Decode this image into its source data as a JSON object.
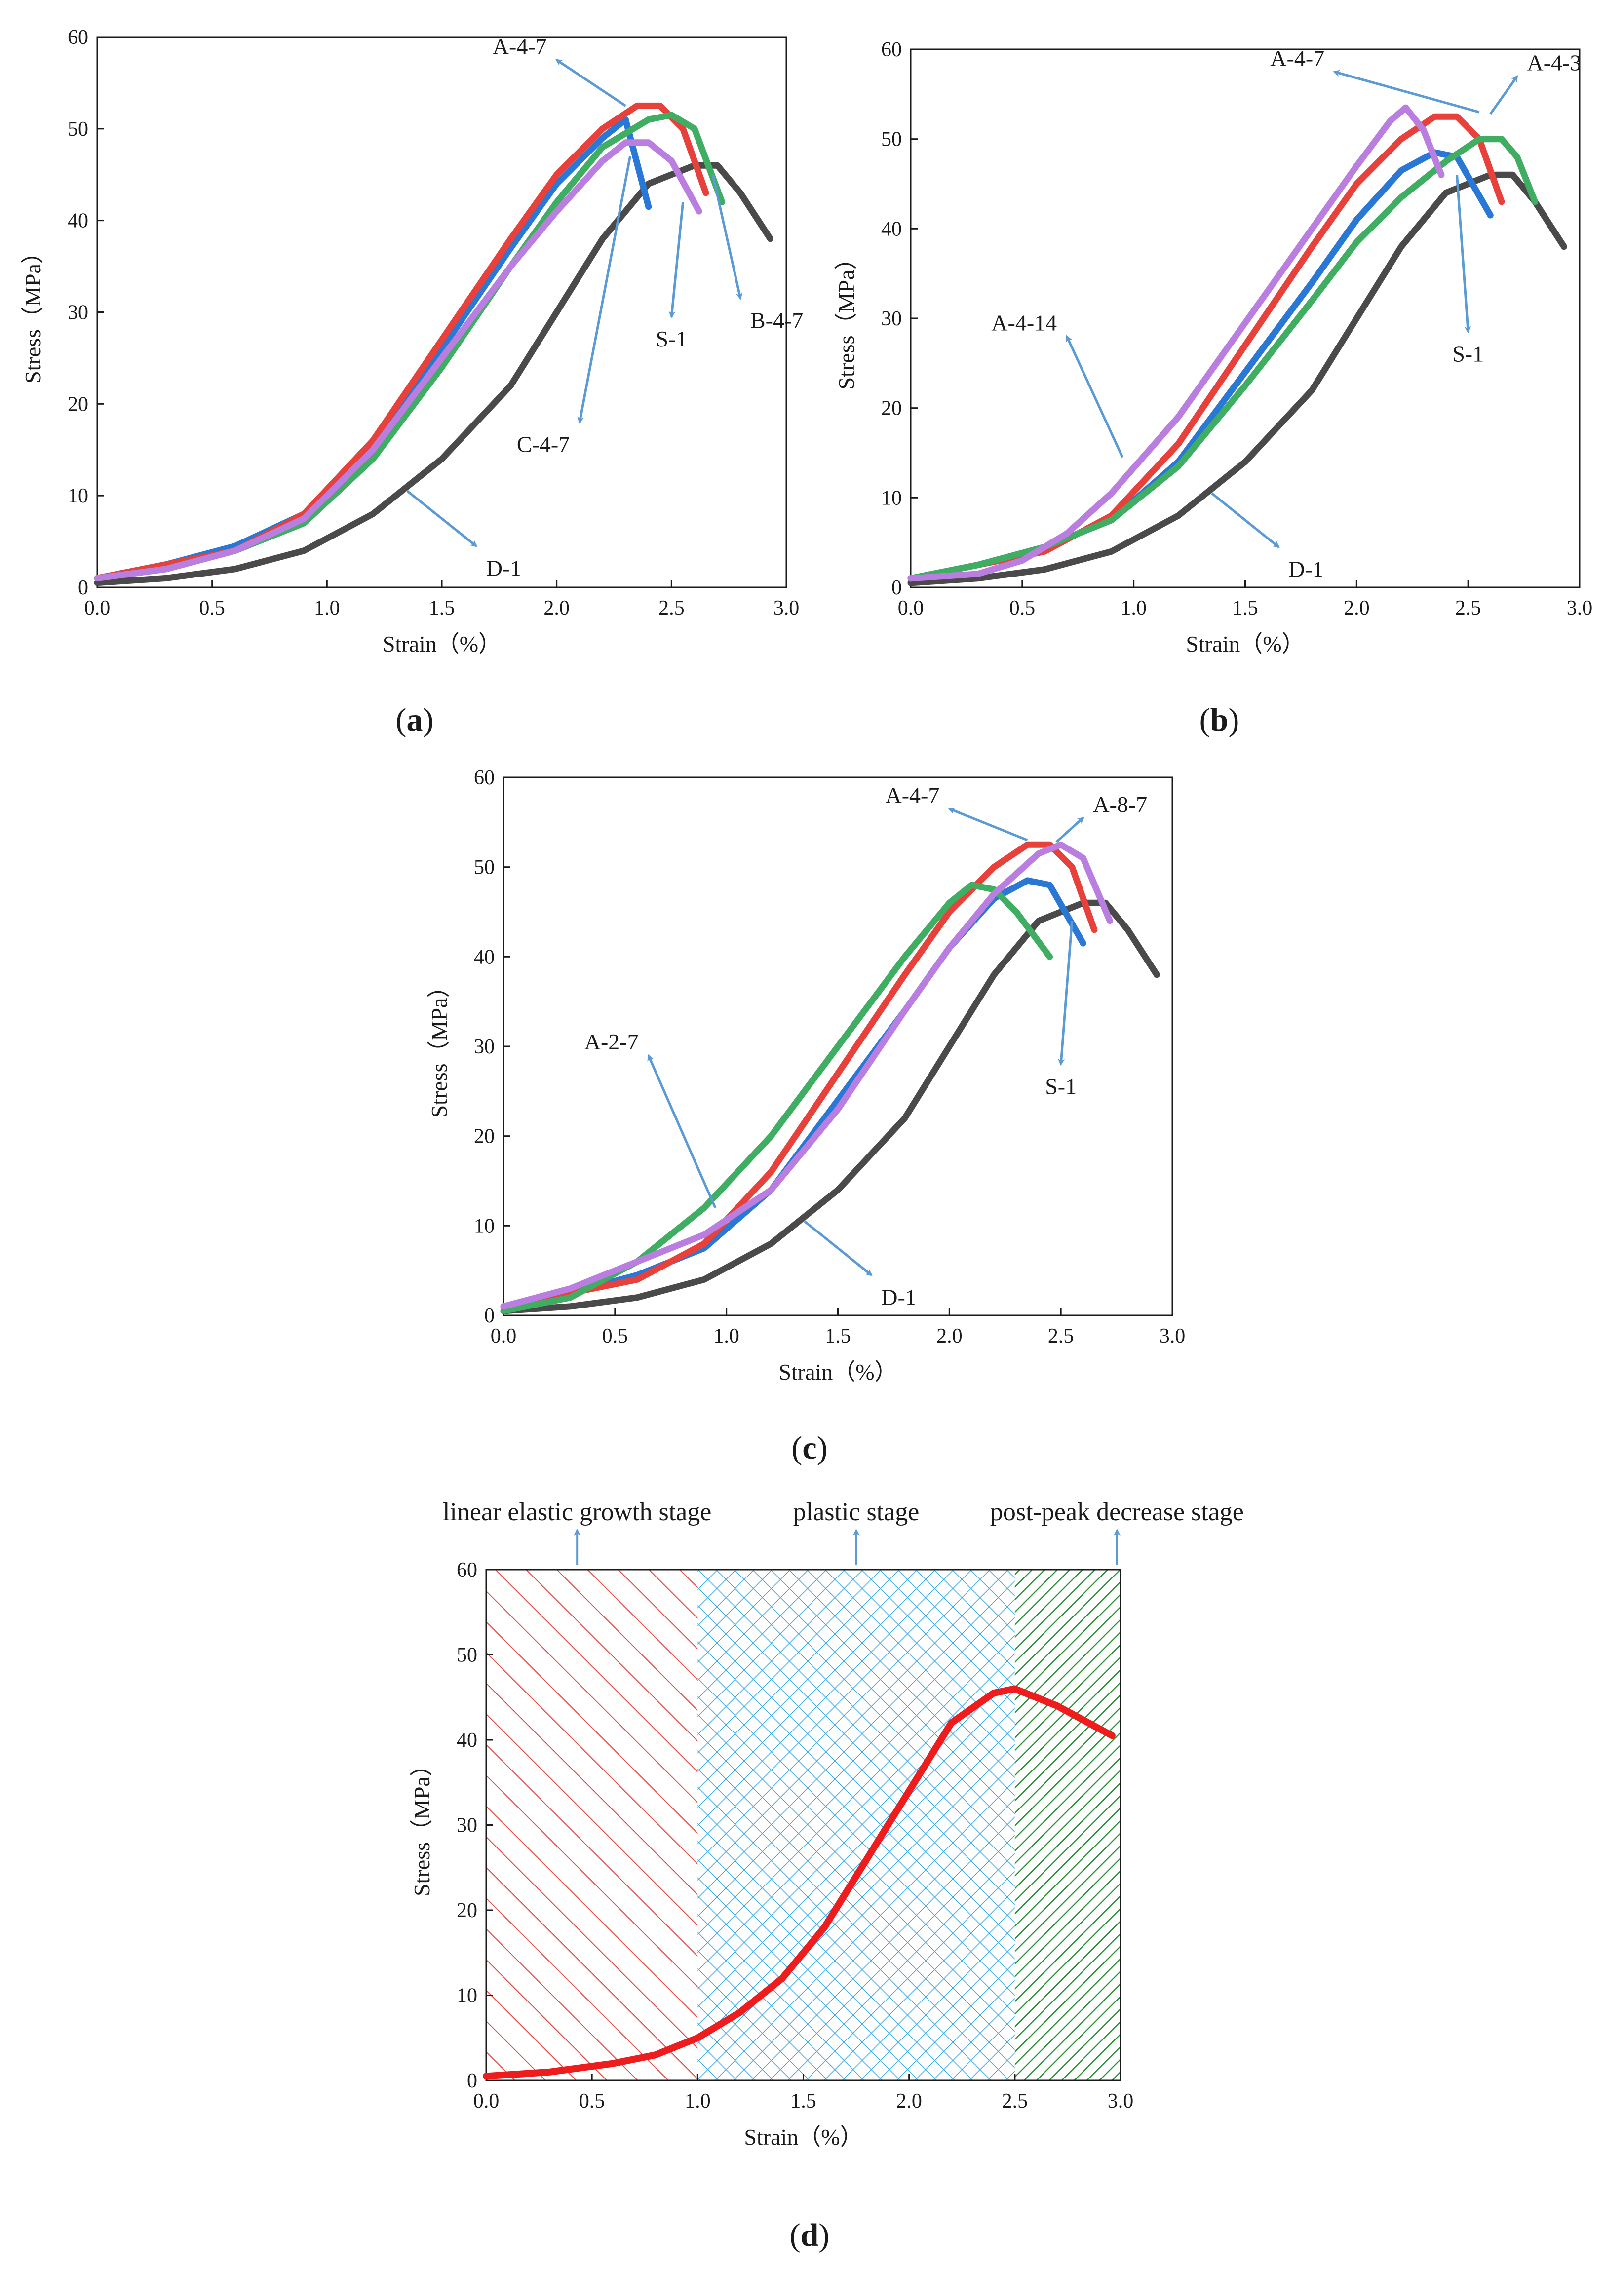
{
  "colors": {
    "D-1": "#4a4a4a",
    "S-1": "#2a78d6",
    "A-4-7": "#e8403a",
    "B-4-7": "#3fae63",
    "C-4-7": "#b97ee0",
    "A-4-3": "#3fae63",
    "A-4-14": "#b97ee0",
    "A-2-7": "#3fae63",
    "A-8-7": "#b97ee0",
    "arrow": "#5b9bd5"
  },
  "chart_data": [
    {
      "panel_label": "a",
      "type": "line",
      "xlabel": "Strain（%）",
      "ylabel": "Stress（MPa）",
      "xlim": [
        0,
        3.0
      ],
      "ylim": [
        0,
        60
      ],
      "xticks": [
        "0.0",
        "0.5",
        "1.0",
        "1.5",
        "2.0",
        "2.5",
        "3.0"
      ],
      "yticks": [
        "0",
        "10",
        "20",
        "30",
        "40",
        "50",
        "60"
      ],
      "series": [
        {
          "name": "D-1",
          "x": [
            0,
            0.3,
            0.6,
            0.9,
            1.2,
            1.5,
            1.8,
            2.0,
            2.2,
            2.4,
            2.6,
            2.7,
            2.8,
            2.93
          ],
          "y": [
            0.5,
            1.0,
            2.0,
            4.0,
            8.0,
            14.0,
            22.0,
            30.0,
            38.0,
            44.0,
            46.0,
            46.0,
            43.0,
            38.0
          ]
        },
        {
          "name": "S-1",
          "x": [
            0,
            0.3,
            0.6,
            0.9,
            1.2,
            1.5,
            1.8,
            2.0,
            2.2,
            2.3,
            2.4
          ],
          "y": [
            1.0,
            2.5,
            4.5,
            8.0,
            16.0,
            26.0,
            37.0,
            44.0,
            49.0,
            51.0,
            41.5
          ]
        },
        {
          "name": "A-4-7",
          "x": [
            0,
            0.2,
            0.6,
            0.9,
            1.2,
            1.5,
            1.8,
            2.0,
            2.2,
            2.35,
            2.45,
            2.55,
            2.65
          ],
          "y": [
            1.0,
            2.0,
            4.0,
            8.0,
            16.0,
            27.0,
            38.0,
            45.0,
            50.0,
            52.5,
            52.5,
            50.0,
            43.0
          ]
        },
        {
          "name": "B-4-7",
          "x": [
            0,
            0.3,
            0.6,
            0.9,
            1.2,
            1.5,
            1.8,
            2.0,
            2.2,
            2.4,
            2.5,
            2.6,
            2.72
          ],
          "y": [
            1.0,
            2.0,
            4.0,
            7.0,
            14.0,
            24.0,
            35.0,
            42.0,
            48.0,
            51.0,
            51.5,
            50.0,
            42.0
          ]
        },
        {
          "name": "C-4-7",
          "x": [
            0,
            0.3,
            0.6,
            0.9,
            1.2,
            1.5,
            1.8,
            2.0,
            2.2,
            2.3,
            2.4,
            2.5,
            2.62
          ],
          "y": [
            1.0,
            2.0,
            4.0,
            7.5,
            15.0,
            25.0,
            35.0,
            41.0,
            46.5,
            48.5,
            48.5,
            46.5,
            41.0
          ]
        }
      ],
      "annotations": [
        {
          "text": "A-4-7",
          "target": [
            2.3,
            52.5
          ],
          "label_at": [
            2.0,
            57.5
          ]
        },
        {
          "text": "B-4-7",
          "target": [
            2.68,
            45.0
          ],
          "label_at": [
            2.8,
            31.5
          ]
        },
        {
          "text": "S-1",
          "target": [
            2.55,
            42.0
          ],
          "label_at": [
            2.5,
            29.5
          ]
        },
        {
          "text": "C-4-7",
          "target": [
            2.32,
            47.0
          ],
          "label_at": [
            2.1,
            18.0
          ]
        },
        {
          "text": "D-1",
          "target": [
            1.35,
            10.5
          ],
          "label_at": [
            1.65,
            4.5
          ]
        }
      ]
    },
    {
      "panel_label": "b",
      "type": "line",
      "xlabel": "Strain（%）",
      "ylabel": "Stress（MPa）",
      "xlim": [
        0,
        3.0
      ],
      "ylim": [
        0,
        60
      ],
      "xticks": [
        "0.0",
        "0.5",
        "1.0",
        "1.5",
        "2.0",
        "2.5",
        "3.0"
      ],
      "yticks": [
        "0",
        "10",
        "20",
        "30",
        "40",
        "50",
        "60"
      ],
      "series": [
        {
          "name": "D-1",
          "x": [
            0,
            0.3,
            0.6,
            0.9,
            1.2,
            1.5,
            1.8,
            2.0,
            2.2,
            2.4,
            2.6,
            2.7,
            2.8,
            2.93
          ],
          "y": [
            0.5,
            1.0,
            2.0,
            4.0,
            8.0,
            14.0,
            22.0,
            30.0,
            38.0,
            44.0,
            46.0,
            46.0,
            43.0,
            38.0
          ]
        },
        {
          "name": "S-1",
          "x": [
            0,
            0.3,
            0.6,
            0.9,
            1.2,
            1.5,
            1.8,
            2.0,
            2.2,
            2.35,
            2.45,
            2.6
          ],
          "y": [
            1.0,
            2.5,
            4.5,
            7.5,
            14.0,
            24.0,
            34.0,
            41.0,
            46.5,
            48.5,
            48.0,
            41.5
          ]
        },
        {
          "name": "A-4-7",
          "x": [
            0,
            0.2,
            0.6,
            0.9,
            1.2,
            1.5,
            1.8,
            2.0,
            2.2,
            2.35,
            2.45,
            2.55,
            2.65
          ],
          "y": [
            1.0,
            2.0,
            4.0,
            8.0,
            16.0,
            27.0,
            38.0,
            45.0,
            50.0,
            52.5,
            52.5,
            50.0,
            43.0
          ]
        },
        {
          "name": "A-4-3",
          "x": [
            0,
            0.3,
            0.6,
            0.9,
            1.2,
            1.5,
            1.8,
            2.0,
            2.2,
            2.4,
            2.55,
            2.65,
            2.72,
            2.8
          ],
          "y": [
            1.0,
            2.5,
            4.5,
            7.5,
            13.5,
            22.5,
            32.0,
            38.5,
            43.5,
            47.5,
            50.0,
            50.0,
            48.0,
            43.0
          ]
        },
        {
          "name": "A-4-14",
          "x": [
            0,
            0.3,
            0.5,
            0.7,
            0.9,
            1.2,
            1.5,
            1.8,
            2.0,
            2.15,
            2.22,
            2.3,
            2.38
          ],
          "y": [
            1.0,
            1.5,
            3.0,
            6.0,
            10.5,
            19.0,
            29.5,
            40.0,
            47.0,
            52.0,
            53.5,
            51.0,
            46.0
          ]
        }
      ],
      "annotations": [
        {
          "text": "A-4-7",
          "target": [
            2.55,
            53.0
          ],
          "label_at": [
            1.9,
            57.5
          ]
        },
        {
          "text": "A-4-3",
          "target": [
            2.6,
            52.8
          ],
          "label_at": [
            2.72,
            57.0
          ]
        },
        {
          "text": "A-4-14",
          "target": [
            0.95,
            14.5
          ],
          "label_at": [
            0.7,
            28.0
          ]
        },
        {
          "text": "S-1",
          "target": [
            2.45,
            46.0
          ],
          "label_at": [
            2.5,
            28.5
          ]
        },
        {
          "text": "D-1",
          "target": [
            1.35,
            10.5
          ],
          "label_at": [
            1.65,
            4.5
          ]
        }
      ]
    },
    {
      "panel_label": "c",
      "type": "line",
      "xlabel": "Strain（%）",
      "ylabel": "Stress（MPa）",
      "xlim": [
        0,
        3.0
      ],
      "ylim": [
        0,
        60
      ],
      "xticks": [
        "0.0",
        "0.5",
        "1.0",
        "1.5",
        "2.0",
        "2.5",
        "3.0"
      ],
      "yticks": [
        "0",
        "10",
        "20",
        "30",
        "40",
        "50",
        "60"
      ],
      "series": [
        {
          "name": "D-1",
          "x": [
            0,
            0.3,
            0.6,
            0.9,
            1.2,
            1.5,
            1.8,
            2.0,
            2.2,
            2.4,
            2.6,
            2.7,
            2.8,
            2.93
          ],
          "y": [
            0.5,
            1.0,
            2.0,
            4.0,
            8.0,
            14.0,
            22.0,
            30.0,
            38.0,
            44.0,
            46.0,
            46.0,
            43.0,
            38.0
          ]
        },
        {
          "name": "S-1",
          "x": [
            0,
            0.3,
            0.6,
            0.9,
            1.2,
            1.5,
            1.8,
            2.0,
            2.2,
            2.35,
            2.45,
            2.6
          ],
          "y": [
            1.0,
            2.5,
            4.5,
            7.5,
            14.0,
            24.0,
            34.0,
            41.0,
            46.5,
            48.5,
            48.0,
            41.5
          ]
        },
        {
          "name": "A-4-7",
          "x": [
            0,
            0.2,
            0.6,
            0.9,
            1.2,
            1.5,
            1.8,
            2.0,
            2.2,
            2.35,
            2.45,
            2.55,
            2.65
          ],
          "y": [
            1.0,
            2.0,
            4.0,
            8.0,
            16.0,
            27.0,
            38.0,
            45.0,
            50.0,
            52.5,
            52.5,
            50.0,
            43.0
          ]
        },
        {
          "name": "A-2-7",
          "x": [
            0,
            0.3,
            0.6,
            0.9,
            1.2,
            1.5,
            1.8,
            2.0,
            2.1,
            2.2,
            2.3,
            2.45
          ],
          "y": [
            0.5,
            2.0,
            6.0,
            12.0,
            20.0,
            30.0,
            40.0,
            46.0,
            48.0,
            47.5,
            45.0,
            40.0
          ]
        },
        {
          "name": "A-8-7",
          "x": [
            0,
            0.3,
            0.6,
            0.9,
            1.2,
            1.5,
            1.8,
            2.0,
            2.2,
            2.4,
            2.5,
            2.6,
            2.72
          ],
          "y": [
            1.0,
            3.0,
            6.0,
            9.0,
            14.0,
            23.0,
            34.0,
            41.0,
            47.0,
            51.5,
            52.5,
            51.0,
            44.0
          ]
        }
      ],
      "annotations": [
        {
          "text": "A-4-7",
          "target": [
            2.35,
            53.0
          ],
          "label_at": [
            2.0,
            56.5
          ]
        },
        {
          "text": "A-8-7",
          "target": [
            2.48,
            52.8
          ],
          "label_at": [
            2.6,
            55.5
          ]
        },
        {
          "text": "A-2-7",
          "target": [
            0.95,
            12.0
          ],
          "label_at": [
            0.65,
            29.0
          ]
        },
        {
          "text": "S-1",
          "target": [
            2.55,
            44.0
          ],
          "label_at": [
            2.5,
            28.0
          ]
        },
        {
          "text": "D-1",
          "target": [
            1.35,
            10.5
          ],
          "label_at": [
            1.65,
            4.5
          ]
        }
      ]
    },
    {
      "panel_label": "d",
      "type": "line",
      "xlabel": "Strain（%）",
      "ylabel": "Stress（MPa）",
      "xlim": [
        0,
        3.0
      ],
      "ylim": [
        0,
        60
      ],
      "xticks": [
        "0.0",
        "0.5",
        "1.0",
        "1.5",
        "2.0",
        "2.5",
        "3.0"
      ],
      "yticks": [
        "0",
        "10",
        "20",
        "30",
        "40",
        "50",
        "60"
      ],
      "regions": [
        {
          "label": "linear elastic growth stage",
          "x_range": [
            0,
            1.0
          ],
          "color": "#e8403a",
          "pattern": "diagonal"
        },
        {
          "label": "plastic stage",
          "x_range": [
            1.0,
            2.5
          ],
          "color": "#2fa3e6",
          "pattern": "crosshatch"
        },
        {
          "label": "post-peak decrease stage",
          "x_range": [
            2.5,
            3.0
          ],
          "color": "#1f8a2e",
          "pattern": "dense-diagonal"
        }
      ],
      "series": [
        {
          "name": "",
          "x": [
            0,
            0.3,
            0.6,
            0.8,
            1.0,
            1.2,
            1.4,
            1.6,
            1.8,
            2.0,
            2.2,
            2.4,
            2.5,
            2.7,
            2.96
          ],
          "y": [
            0.5,
            1.0,
            2.0,
            3.0,
            5.0,
            8.0,
            12.0,
            18.0,
            26.0,
            34.0,
            42.0,
            45.5,
            46.0,
            44.0,
            40.5
          ]
        }
      ]
    }
  ]
}
